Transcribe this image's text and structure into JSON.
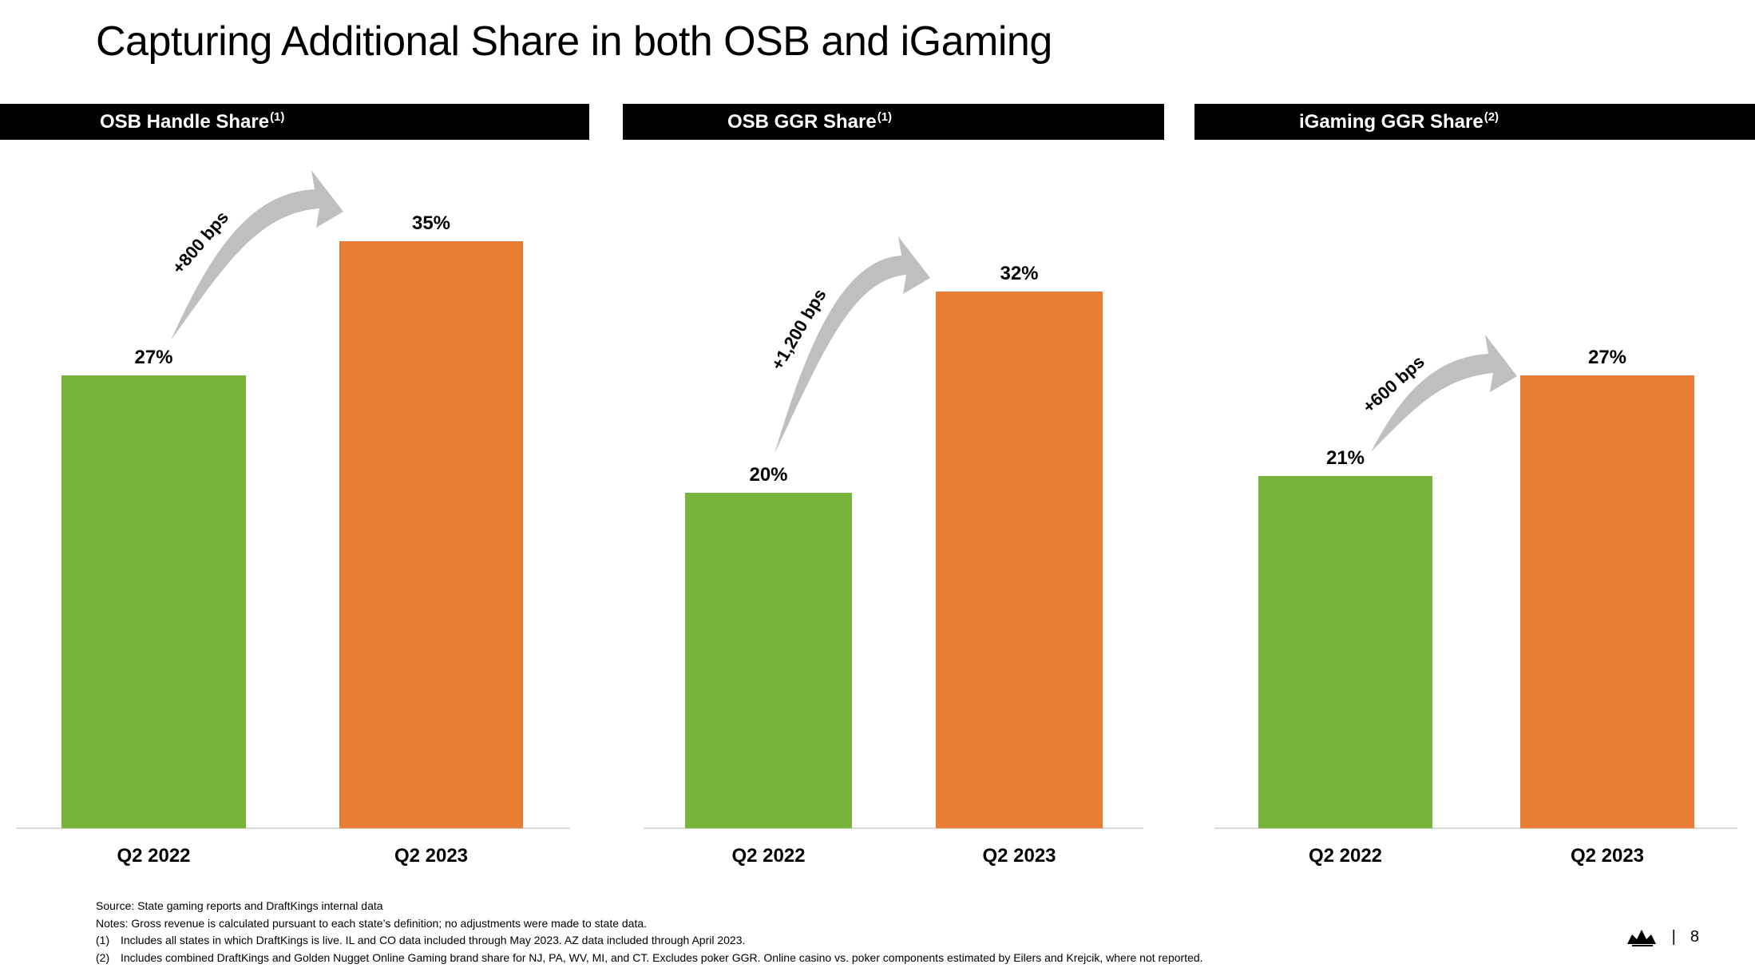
{
  "title": "Capturing Additional Share in both OSB and iGaming",
  "panels": [
    {
      "label": "OSB Handle Share",
      "sup": "(1)"
    },
    {
      "label": "OSB GGR Share",
      "sup": "(1)"
    },
    {
      "label": "iGaming GGR Share",
      "sup": "(2)"
    }
  ],
  "colors": {
    "prior": "#78B33A",
    "current": "#E87D34",
    "arrow": "#BFBFBF",
    "header_bg": "#000000"
  },
  "chart_data": [
    {
      "type": "bar",
      "title": "OSB Handle Share",
      "categories": [
        "Q2 2022",
        "Q2 2023"
      ],
      "values": [
        27,
        35
      ],
      "data_labels": [
        "27%",
        "35%"
      ],
      "annotation": "+800 bps",
      "ylim": [
        0,
        40
      ]
    },
    {
      "type": "bar",
      "title": "OSB GGR Share",
      "categories": [
        "Q2 2022",
        "Q2 2023"
      ],
      "values": [
        20,
        32
      ],
      "data_labels": [
        "20%",
        "32%"
      ],
      "annotation": "+1,200 bps",
      "ylim": [
        0,
        40
      ]
    },
    {
      "type": "bar",
      "title": "iGaming GGR Share",
      "categories": [
        "Q2 2022",
        "Q2 2023"
      ],
      "values": [
        21,
        27
      ],
      "data_labels": [
        "21%",
        "27%"
      ],
      "annotation": "+600 bps",
      "ylim": [
        0,
        40
      ]
    }
  ],
  "footnotes": {
    "source": "Source: State gaming reports and DraftKings internal data",
    "notes": "Notes: Gross revenue is calculated pursuant to each state’s definition; no adjustments were made to state data.",
    "items": [
      {
        "num": "(1)",
        "text": "Includes all states in which DraftKings is live. IL and CO data included through May 2023. AZ data included through April 2023."
      },
      {
        "num": "(2)",
        "text": "Includes combined DraftKings and Golden Nugget Online Gaming brand share for NJ, PA, WV, MI, and CT. Excludes poker GGR. Online casino vs. poker components estimated by Eilers and Krejcik, where not reported."
      }
    ]
  },
  "page_number": "8",
  "page_separator": "|",
  "logo_icon": "crown-icon"
}
